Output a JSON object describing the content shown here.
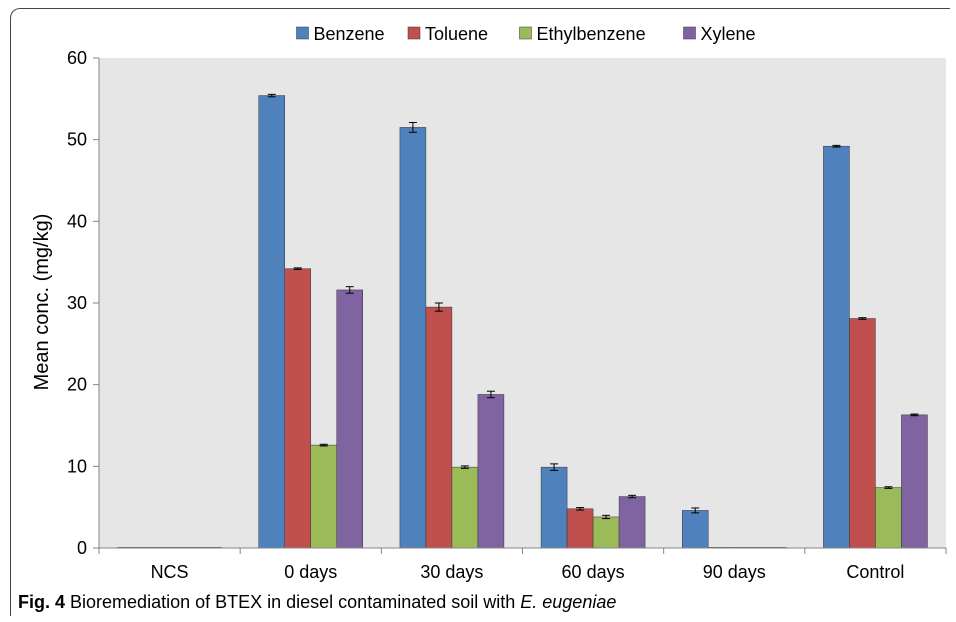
{
  "caption": {
    "label": "Fig. 4",
    "text": "Bioremediation of BTEX in diesel contaminated soil with ",
    "organism": "E. eugeniae"
  },
  "chart_data": {
    "type": "bar",
    "title": "",
    "xlabel": "",
    "ylabel": "Mean conc. (mg/kg)",
    "ylim": [
      0,
      60
    ],
    "yticks": [
      0,
      10,
      20,
      30,
      40,
      50,
      60
    ],
    "grid": false,
    "legend_position": "top",
    "plot_background": "#e6e6e6",
    "categories": [
      "NCS",
      "0 days",
      "30 days",
      "60 days",
      "90 days",
      "Control"
    ],
    "series": [
      {
        "name": "Benzene",
        "color": "#4f81bd",
        "values": [
          0,
          55.4,
          51.5,
          9.9,
          4.6,
          49.2
        ],
        "errors": [
          0,
          0.15,
          0.6,
          0.4,
          0.3,
          0.1
        ]
      },
      {
        "name": "Toluene",
        "color": "#c0504d",
        "values": [
          0,
          34.2,
          29.5,
          4.8,
          0,
          28.1
        ],
        "errors": [
          0,
          0.1,
          0.5,
          0.15,
          0,
          0.1
        ]
      },
      {
        "name": "Ethylbenzene",
        "color": "#9bbb59",
        "values": [
          0,
          12.6,
          9.9,
          3.8,
          0,
          7.4
        ],
        "errors": [
          0,
          0.1,
          0.15,
          0.2,
          0,
          0.1
        ]
      },
      {
        "name": "Xylene",
        "color": "#8064a2",
        "values": [
          0,
          31.6,
          18.8,
          6.3,
          0,
          16.3
        ],
        "errors": [
          0,
          0.4,
          0.4,
          0.15,
          0,
          0.1
        ]
      }
    ]
  }
}
